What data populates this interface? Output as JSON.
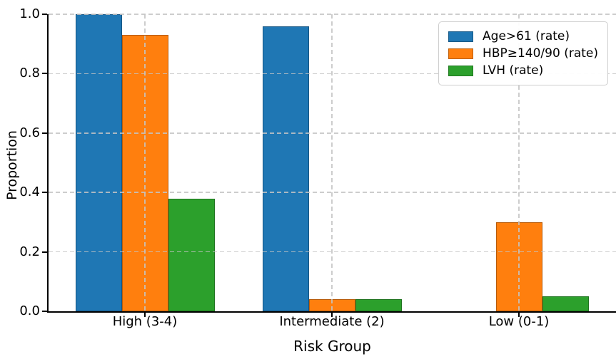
{
  "figure": {
    "background": "#ffffff",
    "text_color": "#000000",
    "axis_color": "#000000",
    "grid_color": "#c4c4c4"
  },
  "chart_data": {
    "type": "bar",
    "xlabel": "Risk Group",
    "ylabel": "Proportion",
    "categories": [
      "High (3-4)",
      "Intermediate (2)",
      "Low (0-1)"
    ],
    "series": [
      {
        "name": "Age>61 (rate)",
        "color": "#1f77b4",
        "values": [
          1.0,
          0.96,
          0.0
        ]
      },
      {
        "name": "HBP≥140/90 (rate)",
        "color": "#ff7f0e",
        "values": [
          0.93,
          0.04,
          0.3
        ]
      },
      {
        "name": "LVH (rate)",
        "color": "#2ca02c",
        "values": [
          0.38,
          0.04,
          0.05
        ]
      }
    ],
    "ylim": [
      0.0,
      1.0
    ],
    "yticks": [
      {
        "value": 0.0,
        "label": "0.0"
      },
      {
        "value": 0.2,
        "label": "0.2"
      },
      {
        "value": 0.4,
        "label": "0.4"
      },
      {
        "value": 0.6,
        "label": "0.6"
      },
      {
        "value": 0.8,
        "label": "0.8"
      },
      {
        "value": 1.0,
        "label": "1.0"
      }
    ],
    "grid": {
      "style": "dashed",
      "axes": "both",
      "above_bars": true
    },
    "legend": {
      "position": "upper right"
    }
  }
}
